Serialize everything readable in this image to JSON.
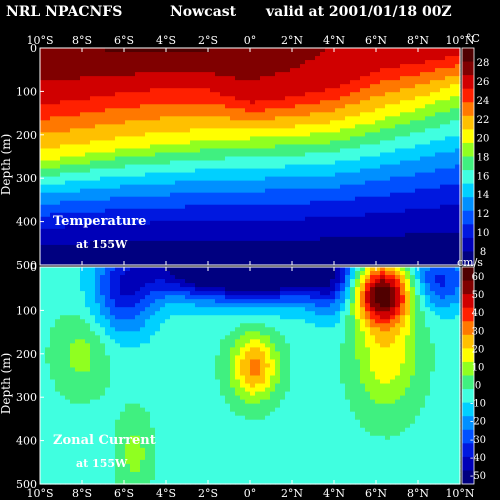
{
  "header": {
    "model": "NRL NPACNFS",
    "product": "Nowcast",
    "valid": "valid at 2001/01/18 00Z"
  },
  "colors": {
    "background": "#000000",
    "text": "#ffffff",
    "frame": "#ffffff",
    "colormap": [
      "#000080",
      "#0000b8",
      "#0018e0",
      "#0050ff",
      "#0090ff",
      "#00d0ff",
      "#40ffe0",
      "#40f080",
      "#90ff20",
      "#ffff00",
      "#ffc000",
      "#ff7800",
      "#ff2000",
      "#d00000",
      "#800000",
      "#500000"
    ]
  },
  "chart_data": [
    {
      "type": "heatmap",
      "name": "Temperature",
      "panel_label": "Temperature",
      "panel_sublabel": "at 155W",
      "xlabel": "",
      "ylabel": "Depth (m)",
      "x_tick_labels": [
        "10°S",
        "8°S",
        "6°S",
        "4°S",
        "2°S",
        "0°",
        "2°N",
        "4°N",
        "6°N",
        "8°N",
        "10°N"
      ],
      "x_range_deg": [
        -10,
        10
      ],
      "y_tick_labels": [
        "0",
        "100",
        "200",
        "300",
        "400",
        "500"
      ],
      "y_range_m": [
        0,
        500
      ],
      "y_inverted": true,
      "colorbar_unit": "°C",
      "colorbar_ticks": [
        "28",
        "26",
        "24",
        "22",
        "20",
        "18",
        "16",
        "14",
        "12",
        "10",
        "8"
      ],
      "colorbar_range": [
        6.5,
        29.5
      ],
      "latitude_deg": [
        -10,
        -8,
        -6,
        -4,
        -2,
        0,
        2,
        4,
        6,
        8,
        10
      ],
      "mixed_layer_temp_c": [
        28,
        28,
        28.3,
        28.3,
        28.2,
        27.8,
        27.2,
        26.5,
        25.8,
        26,
        26.4
      ],
      "isotherm_20c_depth_m": [
        255,
        240,
        225,
        215,
        205,
        200,
        195,
        185,
        160,
        130,
        95
      ],
      "isotherm_26c_depth_m": [
        110,
        100,
        85,
        75,
        80,
        115,
        100,
        80,
        35,
        20,
        5
      ],
      "deep_temp_500m_c": 7
    },
    {
      "type": "heatmap",
      "name": "Zonal Current",
      "panel_label": "Zonal Current",
      "panel_sublabel": "at 155W",
      "xlabel": "",
      "ylabel": "Depth (m)",
      "x_tick_labels": [
        "10°S",
        "8°S",
        "6°S",
        "4°S",
        "2°S",
        "0°",
        "2°N",
        "4°N",
        "6°N",
        "8°N",
        "10°N"
      ],
      "x_range_deg": [
        -10,
        10
      ],
      "y_tick_labels": [
        "0",
        "100",
        "200",
        "300",
        "400",
        "500"
      ],
      "y_range_m": [
        0,
        500
      ],
      "y_inverted": true,
      "colorbar_unit": "cm/s",
      "colorbar_ticks": [
        "60",
        "50",
        "40",
        "30",
        "20",
        "10",
        "0",
        "-10",
        "-20",
        "-30",
        "-40",
        "-50"
      ],
      "colorbar_range": [
        -55,
        65
      ],
      "background_value_cms": -5,
      "features": [
        {
          "lat": -2,
          "depth": 0,
          "value": -60,
          "lat_width": 3.2,
          "depth_width": 70
        },
        {
          "lat": 1.5,
          "depth": 0,
          "value": -55,
          "lat_width": 2.8,
          "depth_width": 75
        },
        {
          "lat": -6,
          "depth": 60,
          "value": -35,
          "lat_width": 1.5,
          "depth_width": 100
        },
        {
          "lat": 4,
          "depth": 40,
          "value": -30,
          "lat_width": 1.2,
          "depth_width": 80
        },
        {
          "lat": 9,
          "depth": 30,
          "value": -35,
          "lat_width": 1.5,
          "depth_width": 70
        },
        {
          "lat": 0.2,
          "depth": 230,
          "value": 30,
          "lat_width": 1.1,
          "depth_width": 75
        },
        {
          "lat": 6.3,
          "depth": 60,
          "value": 60,
          "lat_width": 1.4,
          "depth_width": 70
        },
        {
          "lat": 6.5,
          "depth": 200,
          "value": 18,
          "lat_width": 1.5,
          "depth_width": 130
        },
        {
          "lat": -8,
          "depth": 200,
          "value": 8,
          "lat_width": 1.3,
          "depth_width": 90
        },
        {
          "lat": -5.5,
          "depth": 430,
          "value": 8,
          "lat_width": 0.8,
          "depth_width": 90
        }
      ]
    }
  ]
}
